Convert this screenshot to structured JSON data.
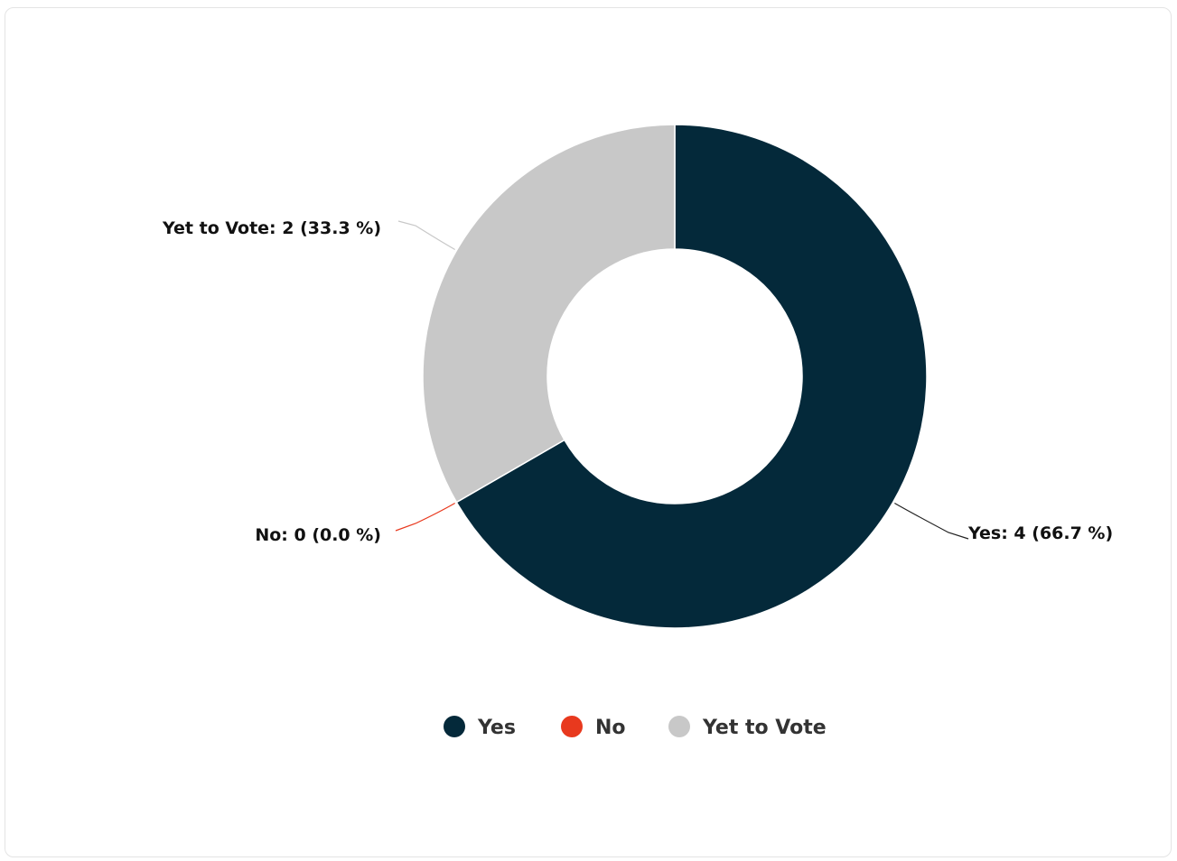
{
  "chart_data": {
    "type": "pie",
    "variant": "donut",
    "slices": [
      {
        "name": "Yes",
        "value": 4,
        "percent": 66.7,
        "color": "#04293a",
        "label": "Yes: 4 (66.7 %)"
      },
      {
        "name": "No",
        "value": 0,
        "percent": 0.0,
        "color": "#e8391e",
        "label": "No: 0 (0.0 %)"
      },
      {
        "name": "Yet to Vote",
        "value": 2,
        "percent": 33.3,
        "color": "#c8c8c8",
        "label": "Yet to Vote: 2 (33.3 %)"
      }
    ],
    "legend": {
      "placement": "bottom",
      "entries": [
        "Yes",
        "No",
        "Yet to Vote"
      ]
    }
  }
}
